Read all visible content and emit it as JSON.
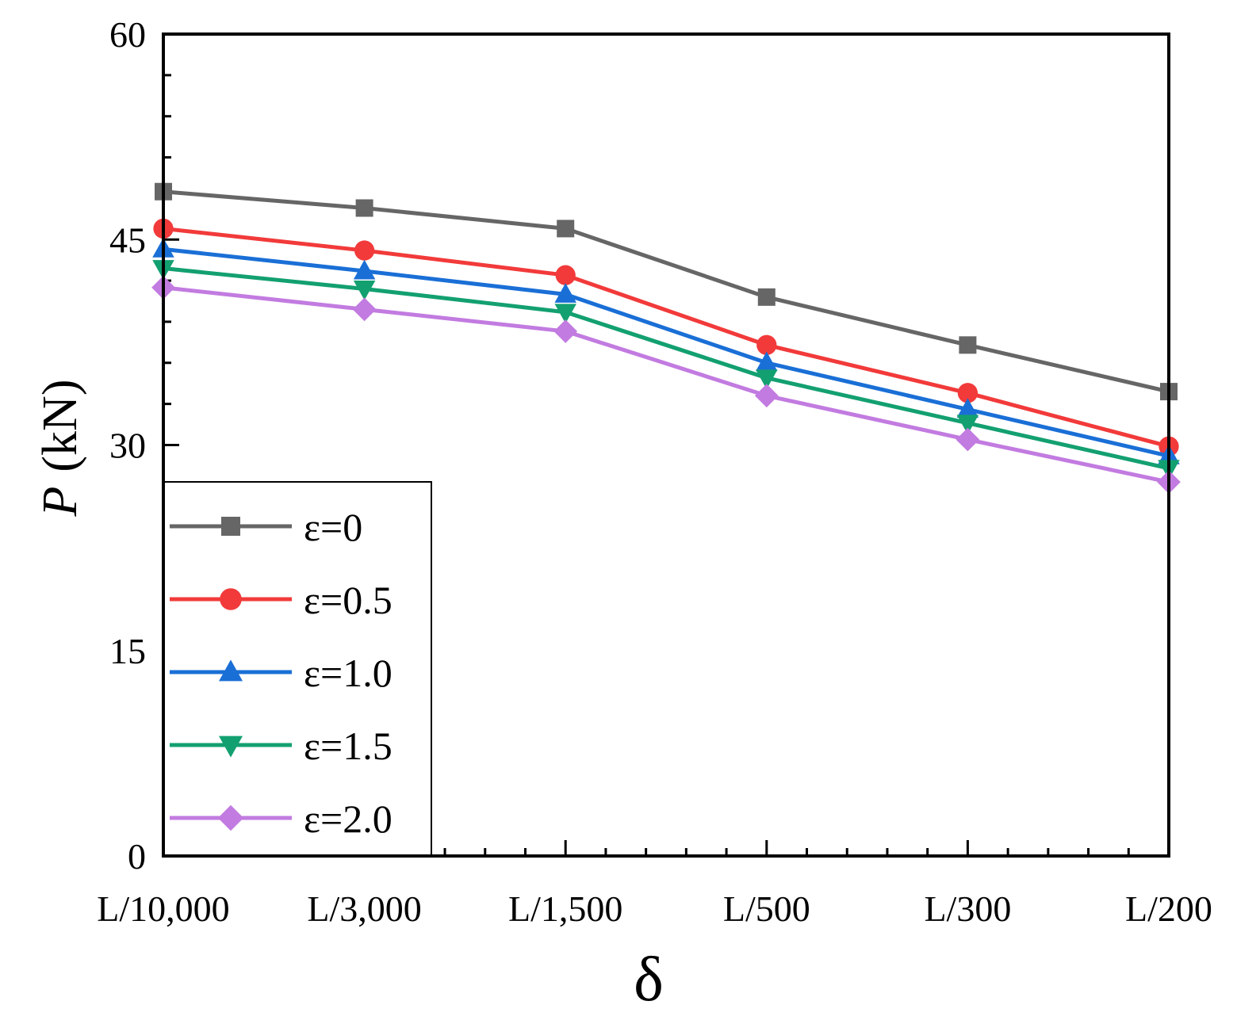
{
  "chart_data": {
    "type": "line",
    "xlabel": "δ",
    "ylabel_var": "P",
    "ylabel_unit": "(kN)",
    "categories": [
      "L/10,000",
      "L/3,000",
      "L/1,500",
      "L/500",
      "L/300",
      "L/200"
    ],
    "ylim": [
      0,
      60
    ],
    "yticks": [
      0,
      15,
      30,
      45,
      60
    ],
    "grid": false,
    "legend_position": "bottom-left",
    "series": [
      {
        "name": "ε=0",
        "marker": "square",
        "color": "#666666",
        "values": [
          48.5,
          47.3,
          45.8,
          40.8,
          37.3,
          33.9
        ]
      },
      {
        "name": "ε=0.5",
        "marker": "circle",
        "color": "#f23a3a",
        "values": [
          45.8,
          44.2,
          42.4,
          37.3,
          33.8,
          29.9
        ]
      },
      {
        "name": "ε=1.0",
        "marker": "triangle-up",
        "color": "#1a6fd6",
        "values": [
          44.3,
          42.7,
          41.0,
          36.0,
          32.6,
          29.2
        ]
      },
      {
        "name": "ε=1.5",
        "marker": "triangle-down",
        "color": "#13a070",
        "values": [
          42.9,
          41.4,
          39.7,
          34.9,
          31.6,
          28.3
        ]
      },
      {
        "name": "ε=2.0",
        "marker": "diamond",
        "color": "#c27be0",
        "values": [
          41.5,
          39.9,
          38.3,
          33.6,
          30.4,
          27.3
        ]
      }
    ]
  }
}
